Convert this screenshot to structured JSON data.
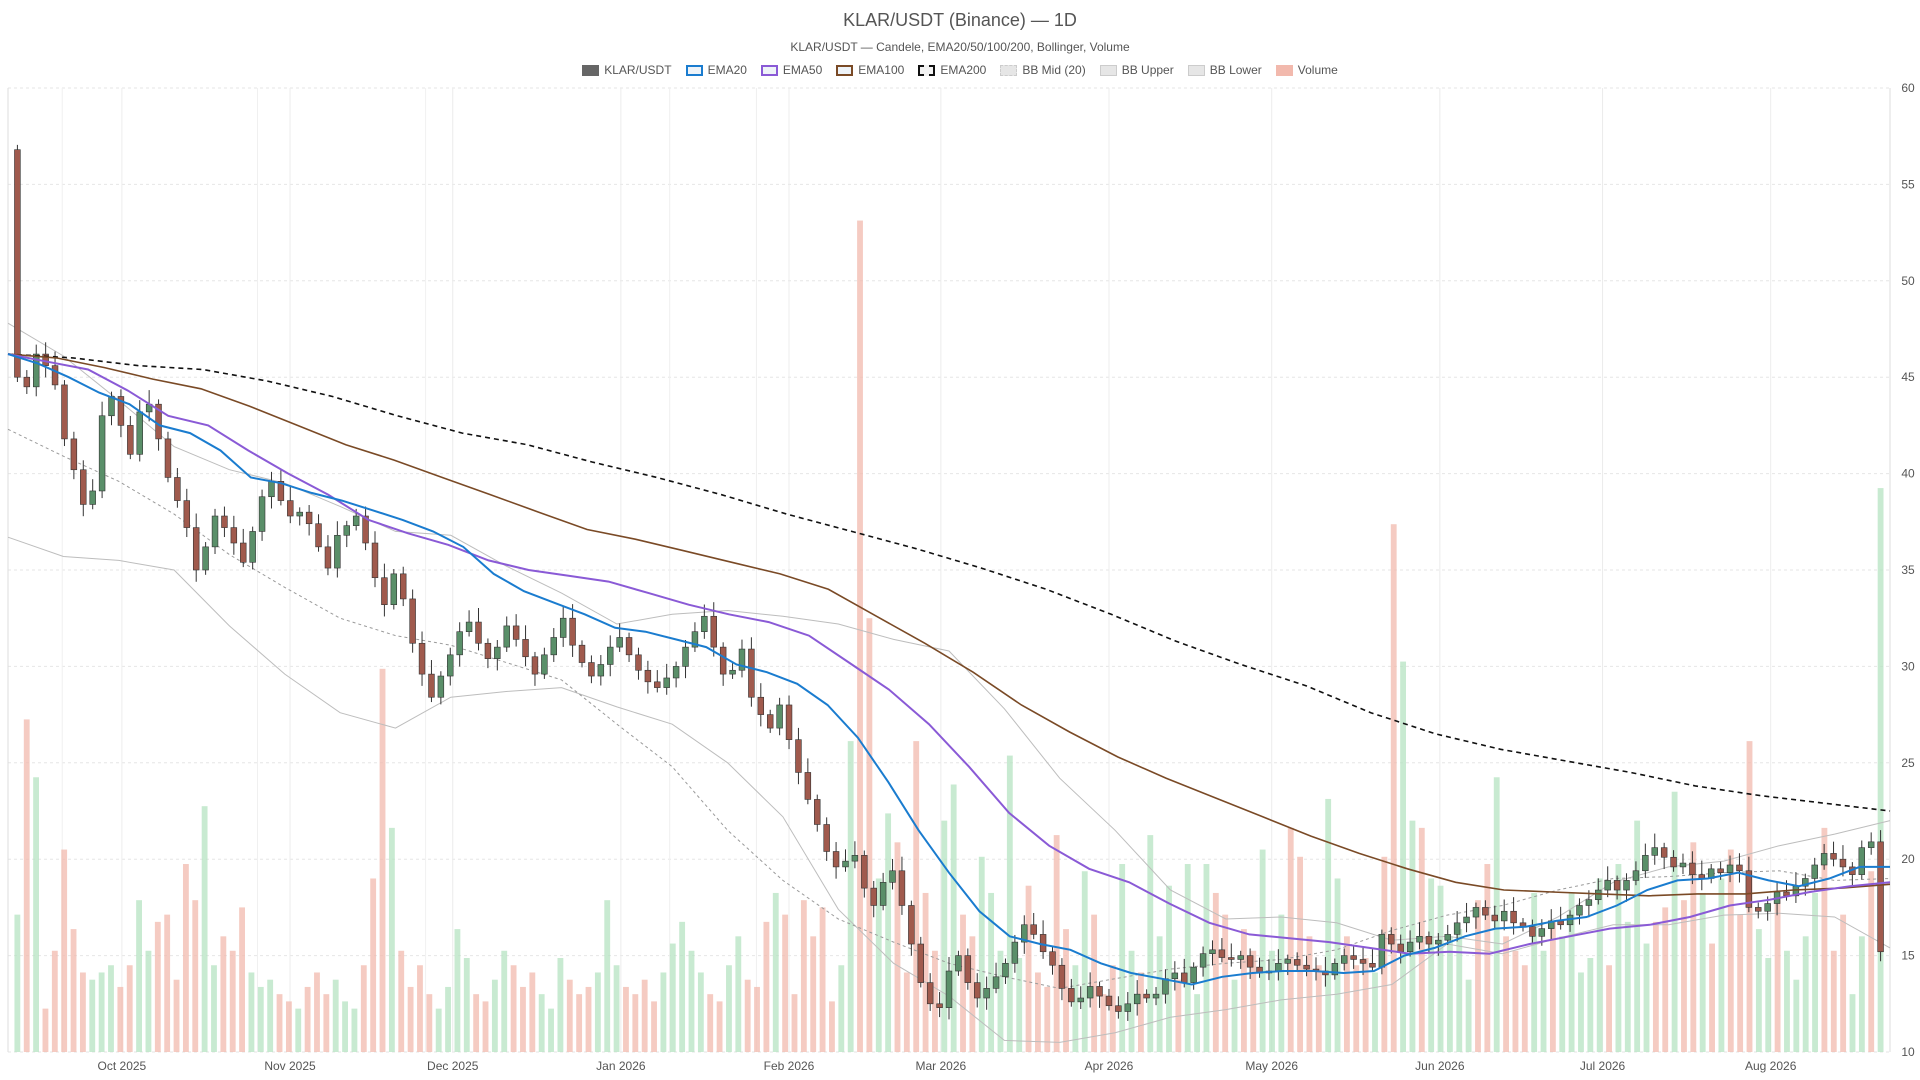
{
  "chart_data": {
    "type": "candlestick",
    "title": "KLAR/USDT (Binance) — 1D",
    "subtitle": "KLAR/USDT — Candele, EMA20/50/100/200, Bollinger, Volume",
    "legend": [
      {
        "label": "KLAR/USDT",
        "color": "#666666",
        "style": "solid-fill"
      },
      {
        "label": "EMA20",
        "color": "#1a7ccf",
        "style": "line"
      },
      {
        "label": "EMA50",
        "color": "#8a5ad6",
        "style": "line"
      },
      {
        "label": "EMA100",
        "color": "#7a4a26",
        "style": "line"
      },
      {
        "label": "EMA200",
        "color": "#111111",
        "style": "dashed"
      },
      {
        "label": "BB Mid (20)",
        "color": "#999999",
        "style": "dashed"
      },
      {
        "label": "BB Upper",
        "color": "#bbbbbb",
        "style": "line"
      },
      {
        "label": "BB Lower",
        "color": "#bbbbbb",
        "style": "line"
      },
      {
        "label": "Volume",
        "color": "#f2b9ad",
        "style": "fill"
      }
    ],
    "x_range": [
      "2025-09-10",
      "2026-08-23"
    ],
    "x_ticks": [
      "Oct 2025",
      "Nov 2025",
      "Dec 2025",
      "Jan 2026",
      "Feb 2026",
      "Mar 2026",
      "Apr 2026",
      "May 2026",
      "Jun 2026",
      "Jul 2026",
      "Aug 2026"
    ],
    "y_axis": {
      "position": "right",
      "range": [
        10,
        60
      ],
      "ticks": [
        10,
        15,
        20,
        25,
        30,
        35,
        40,
        45,
        50,
        55,
        60
      ]
    },
    "colors": {
      "up": "#5a8f69",
      "down": "#a05a4d",
      "volume_up": "#b5e3c2",
      "volume_down": "#f2b9ad"
    },
    "candles": {
      "note_units": "price in USDT, one candle per day",
      "close": [
        45.0,
        44.5,
        46.2,
        45.6,
        44.6,
        41.8,
        40.2,
        38.4,
        39.1,
        43.0,
        44.0,
        42.5,
        41.0,
        43.2,
        43.6,
        41.8,
        39.8,
        38.6,
        37.2,
        35.0,
        36.2,
        37.8,
        37.2,
        36.4,
        35.4,
        37.0,
        38.8,
        39.6,
        38.6,
        37.8,
        38.0,
        37.4,
        36.2,
        35.1,
        36.8,
        37.3,
        37.8,
        36.4,
        34.6,
        33.2,
        34.8,
        33.5,
        31.2,
        29.6,
        28.4,
        29.5,
        30.6,
        31.8,
        32.3,
        31.2,
        30.4,
        31.0,
        32.1,
        31.4,
        30.5,
        29.6,
        30.6,
        31.5,
        32.5,
        31.1,
        30.2,
        29.5,
        30.1,
        31.0,
        31.5,
        30.6,
        29.8,
        29.2,
        28.9,
        29.4,
        30.0,
        31.0,
        31.8,
        32.6,
        31.0,
        29.6,
        29.8,
        30.9,
        28.4,
        27.5,
        26.8,
        28.0,
        26.2,
        24.5,
        23.1,
        21.8,
        20.4,
        19.6,
        19.9,
        20.2,
        18.5,
        17.6,
        18.8,
        19.4,
        17.6,
        15.6,
        13.6,
        12.5,
        12.3,
        14.2,
        15.0,
        13.6,
        12.8,
        13.3,
        13.9,
        14.6,
        15.7,
        16.6,
        16.1,
        15.2,
        14.5,
        13.3,
        12.6,
        12.8,
        13.4,
        12.9,
        12.4,
        12.1,
        12.5,
        13.0,
        12.8,
        13.0,
        13.8,
        14.1,
        13.6,
        14.4,
        15.1,
        15.3,
        14.9,
        14.8,
        15.0,
        14.4,
        14.1,
        14.2,
        14.6,
        14.8,
        14.5,
        14.3,
        14.2,
        14.0,
        14.6,
        15.0,
        14.8,
        14.6,
        14.4,
        16.1,
        15.6,
        15.2,
        15.7,
        16.0,
        15.6,
        15.8,
        16.1,
        16.7,
        17.0,
        17.5,
        17.1,
        16.8,
        17.3,
        16.7,
        16.5,
        16.0,
        16.4,
        16.8,
        16.6,
        17.1,
        17.6,
        17.9,
        18.4,
        18.9,
        18.4,
        18.9,
        19.4,
        20.2,
        20.6,
        20.1,
        19.6,
        19.8,
        19.2,
        19.0,
        19.5,
        19.3,
        19.7,
        19.4,
        17.5,
        17.3,
        17.7,
        18.3,
        18.1,
        18.6,
        19.0,
        19.7,
        20.3,
        20.0,
        19.6,
        19.2,
        20.6,
        20.9,
        15.2
      ],
      "open_prev_close": true
    },
    "ema20": [
      46.2,
      45.7,
      45.0,
      44.2,
      43.6,
      42.5,
      42.1,
      41.2,
      39.8,
      39.5,
      39.0,
      38.6,
      38.1,
      37.6,
      37.0,
      36.2,
      34.8,
      33.9,
      33.3,
      32.7,
      32.0,
      31.8,
      31.4,
      31.0,
      30.1,
      29.7,
      29.1,
      28.0,
      26.3,
      24.0,
      21.5,
      19.3,
      17.3,
      16.0,
      15.6,
      15.3,
      14.6,
      14.1,
      13.8,
      13.5,
      13.9,
      14.1,
      14.2,
      14.2,
      14.1,
      14.2,
      15.0,
      15.4,
      16.0,
      16.4,
      16.5,
      16.8,
      17.0,
      17.6,
      18.4,
      18.9,
      19.0,
      19.3,
      18.9,
      18.6,
      19.0,
      19.6,
      19.6
    ],
    "ema50": [
      46.2,
      45.8,
      45.4,
      44.3,
      43.0,
      42.5,
      41.2,
      40.0,
      38.9,
      37.6,
      36.9,
      36.3,
      35.5,
      35.0,
      34.7,
      34.4,
      33.8,
      33.2,
      32.7,
      32.3,
      31.6,
      30.2,
      28.8,
      27.0,
      24.8,
      22.4,
      20.7,
      19.5,
      18.8,
      17.7,
      16.7,
      16.1,
      15.9,
      15.7,
      15.4,
      15.1,
      15.2,
      15.1,
      15.6,
      16.0,
      16.4,
      16.6,
      17.0,
      17.6,
      17.9,
      18.3,
      18.6,
      18.8
    ],
    "ema100": [
      46.2,
      46.0,
      45.5,
      44.9,
      44.4,
      43.5,
      42.5,
      41.5,
      40.7,
      39.8,
      38.9,
      38.0,
      37.1,
      36.6,
      36.0,
      35.4,
      34.8,
      34.0,
      32.6,
      31.2,
      29.7,
      28.0,
      26.6,
      25.3,
      24.2,
      23.2,
      22.2,
      21.2,
      20.3,
      19.5,
      18.8,
      18.4,
      18.3,
      18.2,
      18.1,
      18.2,
      18.2,
      18.4,
      18.5,
      18.7
    ],
    "ema200": [
      46.2,
      46.0,
      45.6,
      45.4,
      44.8,
      44.0,
      43.0,
      42.1,
      41.5,
      40.6,
      39.8,
      38.9,
      37.9,
      37.0,
      36.1,
      35.1,
      34.0,
      32.7,
      31.3,
      30.1,
      29.0,
      27.6,
      26.5,
      25.7,
      25.1,
      24.5,
      23.8,
      23.3,
      22.9,
      22.5
    ],
    "bb_upper": [
      47.8,
      46.1,
      43.8,
      41.4,
      40.2,
      39.5,
      38.3,
      37.0,
      36.8,
      35.2,
      33.8,
      32.2,
      32.7,
      32.9,
      32.6,
      32.2,
      31.4,
      30.8,
      27.8,
      24.2,
      21.5,
      18.4,
      16.9,
      17.0,
      16.7,
      15.8,
      16.0,
      15.6,
      17.0,
      18.8,
      19.6,
      19.9,
      20.7,
      21.3,
      22.0
    ],
    "bb_lower": [
      36.7,
      35.7,
      35.5,
      35.0,
      32.1,
      29.6,
      27.6,
      26.8,
      28.4,
      28.7,
      28.9,
      27.9,
      27.0,
      25.0,
      22.2,
      17.4,
      14.6,
      12.9,
      10.6,
      10.5,
      11.0,
      11.8,
      12.2,
      12.7,
      13.0,
      13.5,
      15.6,
      15.1,
      15.9,
      16.6,
      16.6,
      17.1,
      17.2,
      17.0,
      15.4
    ],
    "bb_mid": [
      42.3,
      40.9,
      39.6,
      37.9,
      35.8,
      34.1,
      32.5,
      31.6,
      31.1,
      30.2,
      29.3,
      27.0,
      24.8,
      21.5,
      18.9,
      16.9,
      15.7,
      14.6,
      13.9,
      13.3,
      13.8,
      14.3,
      14.6,
      14.8,
      15.3,
      16.3,
      17.1,
      17.6,
      18.4,
      19.0,
      19.1,
      19.3,
      19.4,
      18.9,
      19.0
    ],
    "volume": {
      "note": "relative volume, shown as bars along the bottom of the price pane",
      "values": [
        1.9,
        4.6,
        3.8,
        0.6,
        1.4,
        2.8,
        1.7,
        1.1,
        1.0,
        1.1,
        1.2,
        0.9,
        1.2,
        2.1,
        1.4,
        1.8,
        1.9,
        1.0,
        2.6,
        2.1,
        3.4,
        1.2,
        1.6,
        1.4,
        2.0,
        1.1,
        0.9,
        1.0,
        0.8,
        0.7,
        0.6,
        0.9,
        1.1,
        0.8,
        1.0,
        0.7,
        0.6,
        1.2,
        2.4,
        5.3,
        3.1,
        1.4,
        0.9,
        1.2,
        0.8,
        0.6,
        0.9,
        1.7,
        1.3,
        0.8,
        0.7,
        1.0,
        1.4,
        1.2,
        0.9,
        1.1,
        0.8,
        0.6,
        1.3,
        1.0,
        0.8,
        0.9,
        1.1,
        2.1,
        1.2,
        0.9,
        0.8,
        1.0,
        0.7,
        1.1,
        1.5,
        1.8,
        1.4,
        1.1,
        0.8,
        0.7,
        1.2,
        1.6,
        1.0,
        0.9,
        1.8,
        2.2,
        1.9,
        0.8,
        2.1,
        1.6,
        2.0,
        0.7,
        1.2,
        4.3,
        11.5,
        6.0,
        2.4,
        3.3,
        2.9,
        1.1,
        4.3,
        2.2,
        1.4,
        3.2,
        3.7,
        1.9,
        1.6,
        2.7,
        2.2,
        1.4,
        4.1,
        1.3,
        2.3,
        1.1,
        0.9,
        3.0,
        1.7,
        1.2,
        2.5,
        1.9,
        0.8,
        1.2,
        2.6,
        1.4,
        1.1,
        3.0,
        1.6,
        2.3,
        1.0,
        2.6,
        0.8,
        2.6,
        2.2,
        1.9,
        1.0,
        1.7,
        1.4,
        2.8,
        1.4,
        1.9,
        3.1,
        2.7,
        1.6,
        1.2,
        3.5,
        2.4,
        1.6,
        1.2,
        1.3,
        1.1,
        2.7,
        7.3,
        5.4,
        3.2,
        3.1,
        2.4,
        2.3,
        1.6,
        1.7,
        1.0,
        2.1,
        2.6,
        3.8,
        1.6,
        1.4,
        1.2,
        2.2,
        1.4,
        1.8,
        1.6,
        2.2,
        1.1,
        1.3,
        2.4,
        1.2,
        2.6,
        1.8,
        3.2,
        1.5,
        1.8,
        2.0,
        3.6,
        2.1,
        2.9,
        2.2,
        1.5,
        2.4,
        2.8,
        1.9,
        4.3,
        1.7,
        1.3,
        2.1,
        1.4,
        1.0,
        1.6,
        2.2,
        3.1,
        1.4,
        1.9,
        0.8,
        1.6,
        2.5,
        7.8
      ]
    }
  }
}
